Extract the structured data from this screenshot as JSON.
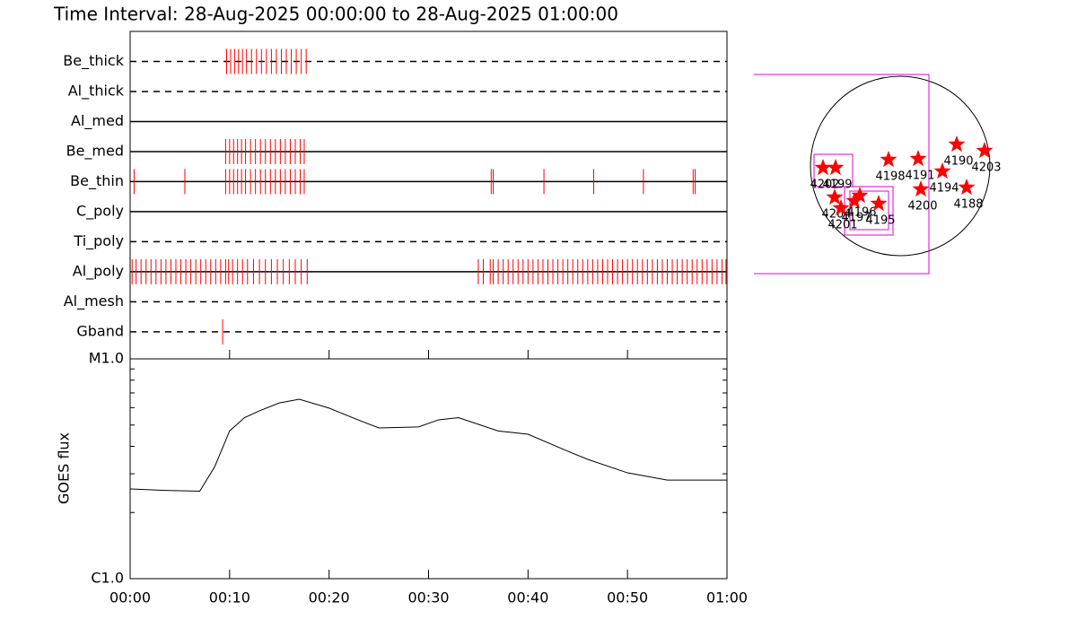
{
  "chart_data": [
    {
      "type": "timeline",
      "title": "Time Interval: 28-Aug-2025 00:00:00 to 28-Aug-2025 01:00:00",
      "xlim": [
        0,
        60
      ],
      "color": "#ff0000",
      "rows": [
        {
          "name": "Be_thick",
          "dashed": true,
          "values": [
            9.7,
            10.1,
            10.5,
            10.9,
            11.3,
            11.7,
            12.2,
            12.7,
            13.2,
            13.7,
            14.2,
            14.7,
            15.2,
            15.7,
            16.2,
            16.7,
            17.2,
            17.7
          ]
        },
        {
          "name": "Al_thick",
          "dashed": true,
          "values": []
        },
        {
          "name": "Al_med",
          "dashed": false,
          "values": []
        },
        {
          "name": "Be_med",
          "dashed": false,
          "values": [
            9.6,
            10.0,
            10.4,
            10.8,
            11.2,
            11.6,
            12.1,
            12.6,
            13.1,
            13.6,
            14.1,
            14.6,
            15.1,
            15.6,
            16.1,
            16.6,
            17.1,
            17.5
          ]
        },
        {
          "name": "Be_thin",
          "dashed": false,
          "values": [
            0.4,
            5.5,
            9.6,
            10.0,
            10.4,
            10.8,
            11.2,
            11.6,
            12.1,
            12.6,
            13.1,
            13.6,
            14.1,
            14.6,
            15.1,
            15.6,
            16.1,
            16.6,
            17.1,
            17.5,
            36.3,
            36.5,
            41.6,
            46.6,
            51.6,
            56.6,
            56.8
          ]
        },
        {
          "name": "C_poly",
          "dashed": false,
          "values": []
        },
        {
          "name": "Ti_poly",
          "dashed": true,
          "values": []
        },
        {
          "name": "Al_poly",
          "dashed": false,
          "values": [
            0.2,
            0.6,
            1.1,
            1.6,
            2.1,
            2.6,
            3.1,
            3.6,
            4.1,
            4.6,
            5.1,
            5.6,
            6.1,
            6.6,
            7.1,
            7.6,
            8.1,
            8.6,
            9.1,
            9.6,
            9.9,
            10.3,
            10.8,
            11.3,
            11.8,
            12.4,
            13.0,
            13.6,
            14.2,
            14.8,
            15.4,
            16.0,
            16.6,
            17.2,
            17.8,
            35.0,
            35.5,
            36.2,
            36.5,
            37.0,
            37.5,
            38.0,
            38.5,
            39.0,
            39.5,
            40.0,
            40.5,
            41.0,
            41.5,
            42.0,
            42.5,
            43.0,
            43.5,
            44.0,
            44.5,
            45.0,
            45.5,
            46.0,
            46.5,
            47.0,
            47.5,
            48.0,
            48.5,
            49.0,
            49.5,
            50.0,
            50.5,
            51.0,
            51.5,
            52.0,
            52.5,
            53.0,
            53.5,
            54.0,
            54.5,
            55.0,
            55.5,
            56.0,
            56.5,
            57.0,
            57.5,
            58.0,
            58.5,
            59.0,
            59.5,
            59.9
          ]
        },
        {
          "name": "Al_mesh",
          "dashed": true,
          "values": []
        },
        {
          "name": "Gband",
          "dashed": true,
          "values": [
            9.3
          ]
        }
      ]
    },
    {
      "type": "line",
      "ylabel": "GOES flux",
      "log": true,
      "color": "#000000",
      "xlim": [
        0,
        60
      ],
      "xticks": [
        {
          "value": 0,
          "label": "00:00"
        },
        {
          "value": 10,
          "label": "00:10"
        },
        {
          "value": 20,
          "label": "00:20"
        },
        {
          "value": 30,
          "label": "00:30"
        },
        {
          "value": 40,
          "label": "00:40"
        },
        {
          "value": 50,
          "label": "00:50"
        },
        {
          "value": 60,
          "label": "01:00"
        }
      ],
      "ylim": [
        1e-06,
        1e-05
      ],
      "yticks": [
        {
          "value": 1e-06,
          "label": "C1.0"
        },
        {
          "value": 1e-05,
          "label": "M1.0"
        }
      ],
      "minor_yticks": [
        2e-06,
        3e-06,
        4e-06,
        5e-06,
        6e-06,
        7e-06,
        8e-06,
        9e-06
      ],
      "x": [
        0,
        3.5,
        7,
        8.5,
        10,
        11.5,
        13,
        15,
        17,
        20,
        22.5,
        25,
        29,
        31,
        33,
        37,
        40,
        44,
        46,
        50,
        54,
        60
      ],
      "values": [
        2.56e-06,
        2.52e-06,
        2.5e-06,
        3.23e-06,
        4.7e-06,
        5.4e-06,
        5.8e-06,
        6.3e-06,
        6.55e-06,
        5.97e-06,
        5.37e-06,
        4.85e-06,
        4.9e-06,
        5.28e-06,
        5.4e-06,
        4.7e-06,
        4.54e-06,
        3.8e-06,
        3.49e-06,
        3.03e-06,
        2.81e-06,
        2.81e-06
      ]
    },
    {
      "type": "map",
      "color": "#ff0000",
      "points": [
        {
          "label": "4202",
          "x": -0.86,
          "y": -0.02
        },
        {
          "label": "4199",
          "x": -0.72,
          "y": -0.02
        },
        {
          "label": "4204",
          "x": -0.73,
          "y": -0.35
        },
        {
          "label": "4201",
          "x": -0.66,
          "y": -0.47
        },
        {
          "label": "4197",
          "x": -0.51,
          "y": -0.39
        },
        {
          "label": "4196",
          "x": -0.45,
          "y": -0.33
        },
        {
          "label": "4195",
          "x": -0.24,
          "y": -0.42
        },
        {
          "label": "4198",
          "x": -0.13,
          "y": 0.07
        },
        {
          "label": "4191",
          "x": 0.2,
          "y": 0.08
        },
        {
          "label": "4190",
          "x": 0.63,
          "y": 0.24
        },
        {
          "label": "4203",
          "x": 0.94,
          "y": 0.17
        },
        {
          "label": "4194",
          "x": 0.47,
          "y": -0.06
        },
        {
          "label": "4200",
          "x": 0.23,
          "y": -0.26
        },
        {
          "label": "4188",
          "x": 0.74,
          "y": -0.24
        }
      ]
    }
  ]
}
